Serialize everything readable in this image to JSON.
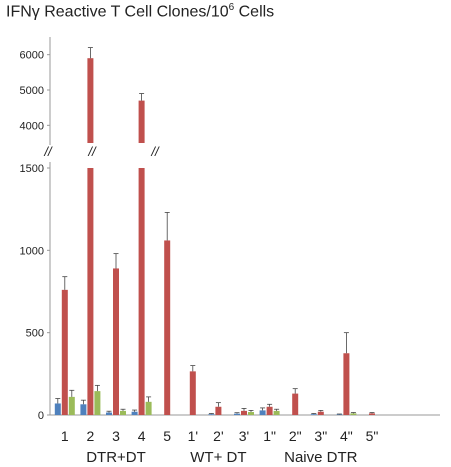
{
  "chart_data": {
    "type": "bar",
    "title_main": "IFNγ Reactive T Cell Clones/10",
    "title_sup": "6",
    "title_tail": " Cells",
    "break_mark": "//",
    "colors": {
      "s1": "#4f81bd",
      "s2": "#c0504d",
      "s3": "#9bbb59"
    },
    "upper_ticks": [
      "6000",
      "5000",
      "4000"
    ],
    "lower_ticks": [
      "1500",
      "1000",
      "500",
      "0"
    ],
    "upper_ylim": [
      3500,
      6500
    ],
    "lower_ylim": [
      0,
      1500
    ],
    "categories": [
      "1",
      "2",
      "3",
      "4",
      "5",
      "1'",
      "2'",
      "3'",
      "1\"",
      "2\"",
      "3\"",
      "4\"",
      "5\""
    ],
    "groups": [
      {
        "label": "DTR+DT",
        "from": 0,
        "to": 4
      },
      {
        "label": "WT+ DT",
        "from": 5,
        "to": 7
      },
      {
        "label": "Naive DTR",
        "from": 8,
        "to": 12
      }
    ],
    "series": [
      {
        "values": [
          70,
          65,
          15,
          20,
          0,
          0,
          5,
          8,
          28,
          0,
          5,
          3,
          0
        ],
        "errors": [
          30,
          25,
          8,
          10,
          0,
          0,
          4,
          6,
          15,
          0,
          4,
          3,
          0
        ]
      },
      {
        "values": [
          760,
          5900,
          890,
          4700,
          1060,
          265,
          50,
          25,
          50,
          130,
          20,
          375,
          10
        ],
        "errors": [
          80,
          300,
          90,
          200,
          170,
          35,
          25,
          15,
          15,
          30,
          8,
          125,
          5
        ]
      },
      {
        "values": [
          110,
          145,
          25,
          80,
          0,
          0,
          0,
          18,
          25,
          0,
          0,
          10,
          0
        ],
        "errors": [
          40,
          35,
          10,
          30,
          0,
          0,
          0,
          10,
          10,
          0,
          0,
          5,
          0
        ]
      }
    ]
  }
}
